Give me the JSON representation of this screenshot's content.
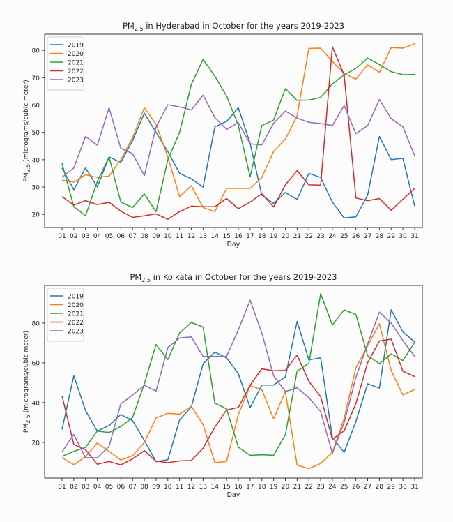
{
  "chart_data": [
    {
      "type": "line",
      "title": "PM2.5 in Hyderabad in October for the years 2019-2023",
      "title_parts": {
        "pre": "PM",
        "sub": "2.5",
        "post": " in Hyderabad in October for the years 2019-2023"
      },
      "xlabel": "Day",
      "ylabel": "PM2.5 (micrograms/cubic meter)",
      "ylabel_parts": {
        "pre": "PM",
        "sub": "2.5",
        "post": " (micrograms/cubic meter)"
      },
      "ylim": [
        15.2,
        85.9
      ],
      "yticks": [
        20,
        30,
        40,
        50,
        60,
        70,
        80
      ],
      "grid": false,
      "legend": "upper-left",
      "categories": [
        "01",
        "02",
        "03",
        "04",
        "05",
        "06",
        "07",
        "08",
        "09",
        "10",
        "11",
        "12",
        "13",
        "14",
        "15",
        "16",
        "17",
        "18",
        "19",
        "20",
        "21",
        "22",
        "23",
        "24",
        "25",
        "26",
        "27",
        "28",
        "29",
        "30",
        "31"
      ],
      "series": [
        {
          "name": "2019",
          "color": "#1f77b4",
          "values": [
            37,
            29,
            37,
            30,
            41,
            39,
            47,
            57,
            50,
            43,
            35,
            33,
            30,
            52,
            54,
            59,
            46,
            27,
            24,
            28,
            25.5,
            35,
            33.5,
            24.5,
            18.7,
            19.1,
            27,
            48.5,
            40,
            40.5,
            23
          ]
        },
        {
          "name": "2020",
          "color": "#ff7f0e",
          "values": [
            32.5,
            31.8,
            34.5,
            33.5,
            34,
            40,
            48,
            59,
            53,
            41,
            26.5,
            30.5,
            22.5,
            21,
            29.5,
            29.5,
            29.5,
            33.5,
            43,
            47.5,
            56,
            80.7,
            80.8,
            76,
            71.5,
            69.5,
            74.7,
            72,
            81,
            80.8,
            82.4
          ]
        },
        {
          "name": "2021",
          "color": "#2ca02c",
          "values": [
            38.7,
            22.8,
            19.5,
            32,
            41,
            24.5,
            22.5,
            27.5,
            21,
            40,
            50,
            67.5,
            76.7,
            70.5,
            63.3,
            52.5,
            33.7,
            52.5,
            54.5,
            66,
            61.7,
            61.8,
            62.8,
            67.7,
            71,
            73.4,
            77.2,
            74.8,
            72.2,
            71.1,
            71.2
          ]
        },
        {
          "name": "2022",
          "color": "#d62728",
          "values": [
            26.5,
            23.4,
            25,
            23.6,
            24.4,
            21.2,
            18.9,
            19.5,
            20.2,
            18.2,
            21,
            23,
            22.8,
            22.8,
            25.8,
            22.1,
            24.5,
            27.5,
            22.7,
            30.8,
            36,
            30.8,
            30.7,
            81.3,
            71,
            26,
            25,
            25.8,
            21.5,
            25.5,
            29.5
          ]
        },
        {
          "name": "2023",
          "color": "#9467bd",
          "values": [
            33.5,
            37,
            48.5,
            45.3,
            59,
            44.2,
            42.2,
            34.2,
            52,
            60.1,
            59.3,
            58.2,
            63.6,
            55.4,
            51.1,
            53.5,
            45.8,
            45.4,
            53.3,
            57.8,
            55.2,
            53.7,
            53.2,
            52.5,
            59.8,
            49.5,
            52.5,
            62,
            55,
            52,
            41.5
          ]
        }
      ]
    },
    {
      "type": "line",
      "title": "PM2.5 in Kolkata in October for the years 2019-2023",
      "title_parts": {
        "pre": "PM",
        "sub": "2.5",
        "post": " in Kolkata in October for the years 2019-2023"
      },
      "xlabel": "Day",
      "ylabel": "PM2.5 (micrograms/cubic meter)",
      "ylabel_parts": {
        "pre": "PM",
        "sub": "2.5",
        "post": " (micrograms/cubic meter)"
      },
      "ylim": [
        2.1,
        98.9
      ],
      "yticks": [
        20,
        40,
        60,
        80
      ],
      "grid": false,
      "legend": "upper-left",
      "categories": [
        "01",
        "02",
        "03",
        "04",
        "05",
        "06",
        "07",
        "08",
        "09",
        "10",
        "11",
        "12",
        "13",
        "14",
        "15",
        "16",
        "17",
        "18",
        "19",
        "20",
        "21",
        "22",
        "23",
        "24",
        "25",
        "26",
        "27",
        "28",
        "29",
        "30",
        "31"
      ],
      "series": [
        {
          "name": "2019",
          "color": "#1f77b4",
          "values": [
            26.5,
            53.5,
            36,
            25.7,
            28.5,
            34,
            31,
            21,
            10.3,
            11.3,
            31.3,
            37.8,
            59.5,
            65.4,
            62.5,
            54.5,
            37.5,
            48.8,
            48.8,
            53,
            80.8,
            61.5,
            62.5,
            22.5,
            15,
            30.5,
            49.5,
            47.3,
            86.7,
            75.5,
            70.5
          ]
        },
        {
          "name": "2020",
          "color": "#ff7f0e",
          "values": [
            12.3,
            8.8,
            12.8,
            19.7,
            15.5,
            11.2,
            13.3,
            20,
            32.3,
            34.6,
            34.2,
            38.2,
            29,
            9.8,
            10.4,
            34,
            48.5,
            46.5,
            31.9,
            45.5,
            8.6,
            6.8,
            9.4,
            15,
            32,
            57.5,
            68.5,
            79.6,
            56.1,
            43.9,
            46.6
          ]
        },
        {
          "name": "2021",
          "color": "#2ca02c",
          "values": [
            13,
            15.5,
            17.5,
            25.7,
            25,
            28,
            32.5,
            49.5,
            69.2,
            61.7,
            75,
            80.3,
            78,
            39.7,
            36.9,
            17.6,
            13.5,
            13.8,
            13.5,
            23.9,
            55.8,
            59.8,
            94.8,
            79,
            86.6,
            84.3,
            63.6,
            59.6,
            64.5,
            61.1,
            70.3
          ]
        },
        {
          "name": "2022",
          "color": "#d62728",
          "values": [
            43.5,
            19,
            16.3,
            9,
            10.4,
            8.7,
            11.7,
            15.9,
            10.6,
            9.8,
            10.7,
            10.9,
            17.1,
            27.7,
            36.3,
            37.6,
            48.8,
            57,
            56,
            56.2,
            63.9,
            50.7,
            43,
            21.6,
            25.8,
            39.5,
            60.1,
            71,
            71.9,
            55.8,
            53.1
          ]
        },
        {
          "name": "2023",
          "color": "#9467bd",
          "values": [
            15.3,
            24,
            12.3,
            12.3,
            18,
            39.4,
            43.8,
            48.7,
            45.8,
            67.7,
            72.5,
            73,
            63.2,
            63.2,
            63.2,
            76.6,
            91.5,
            75,
            53.5,
            45.6,
            47.5,
            42.5,
            35.5,
            14.5,
            30,
            52.7,
            69.5,
            85.5,
            80,
            71.2,
            63.2
          ]
        }
      ]
    }
  ]
}
